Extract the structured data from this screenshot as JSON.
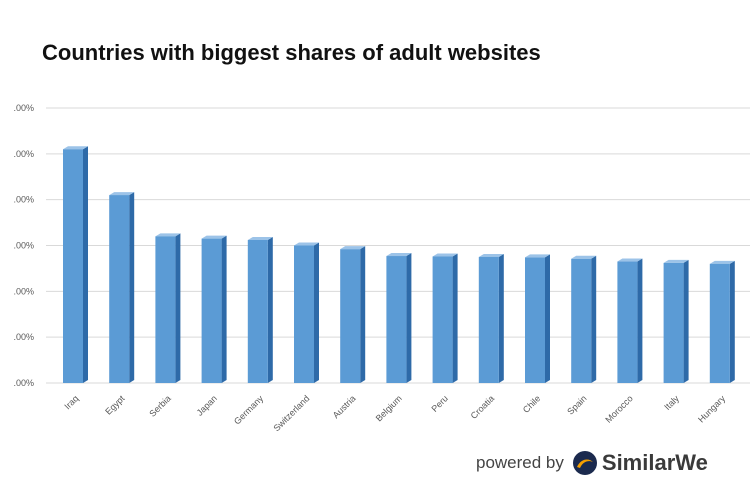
{
  "chart_data": {
    "type": "bar",
    "title": "Countries with biggest shares of adult websites",
    "categories": [
      "Iraq",
      "Egypt",
      "Serbia",
      "Japan",
      "Germany",
      "Switzerland",
      "Austria",
      "Belgium",
      "Peru",
      "Croatia",
      "Chile",
      "Spain",
      "Morocco",
      "Italy",
      "Hungary"
    ],
    "values": [
      6.1,
      5.1,
      4.2,
      4.15,
      4.12,
      4.0,
      3.92,
      3.77,
      3.76,
      3.75,
      3.74,
      3.71,
      3.65,
      3.62,
      3.6
    ],
    "ytick_labels": [
      ".00%",
      ".00%",
      ".00%",
      ".00%",
      ".00%",
      ".00%",
      ".00%"
    ],
    "ylim": [
      1,
      7
    ],
    "grid": true,
    "colors": {
      "bar_front": "#5B9BD5",
      "bar_side": "#2E6AA8",
      "bar_top": "#9CC3E8",
      "grid": "#D9D9D9"
    }
  },
  "footer": {
    "powered_by": "powered by",
    "brand": "SimilarWe",
    "logo_icon": "similarweb-logo-icon"
  }
}
